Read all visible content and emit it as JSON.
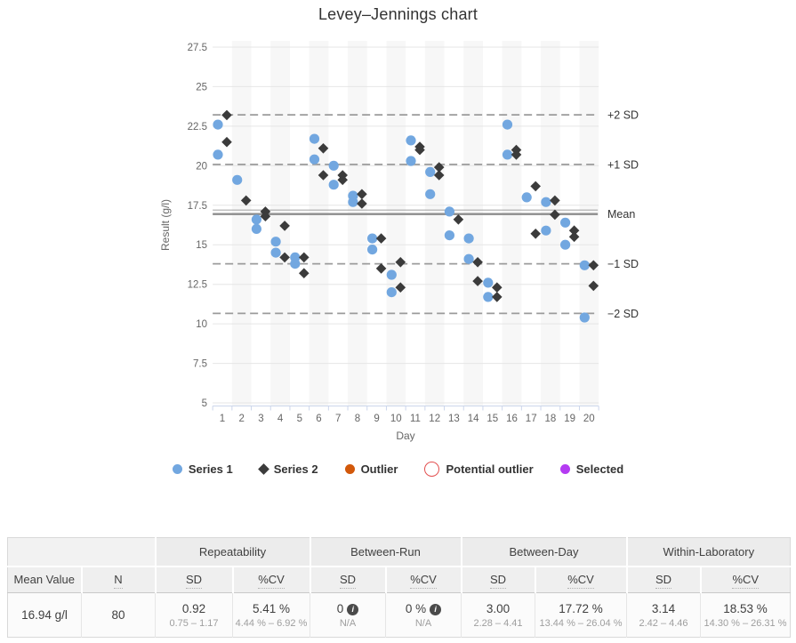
{
  "chart_data": {
    "type": "scatter",
    "title": "Levey–Jennings chart",
    "xlabel": "Day",
    "ylabel": "Result (g/l)",
    "x_ticks": [
      1,
      2,
      3,
      4,
      5,
      6,
      7,
      8,
      9,
      10,
      11,
      12,
      13,
      14,
      15,
      16,
      17,
      18,
      19,
      20
    ],
    "y_ticks": [
      5,
      7.5,
      10,
      12.5,
      15,
      17.5,
      20,
      22.5,
      25,
      27.5
    ],
    "ylim": [
      5,
      27.5
    ],
    "grid": true,
    "banded_days": "even",
    "mean": 16.94,
    "sd": 3.14,
    "ref_lines": [
      {
        "label": "+2 SD",
        "value": 23.22,
        "style": "dashed"
      },
      {
        "label": "+1 SD",
        "value": 20.08,
        "style": "dashed"
      },
      {
        "label": "Mean",
        "value": 16.94,
        "style": "solid"
      },
      {
        "label": "−1 SD",
        "value": 13.8,
        "style": "dashed"
      },
      {
        "label": "−2 SD",
        "value": 10.66,
        "style": "dashed"
      }
    ],
    "series": [
      {
        "name": "Series 1",
        "marker": "circle",
        "color": "#72a7e0",
        "points": [
          [
            1,
            22.6
          ],
          [
            1,
            20.7
          ],
          [
            2,
            19.1
          ],
          [
            3,
            16.6
          ],
          [
            3,
            16.0
          ],
          [
            4,
            15.2
          ],
          [
            4,
            14.5
          ],
          [
            5,
            14.2
          ],
          [
            5,
            13.8
          ],
          [
            6,
            21.7
          ],
          [
            6,
            20.4
          ],
          [
            7,
            20.0
          ],
          [
            7,
            18.8
          ],
          [
            8,
            18.1
          ],
          [
            8,
            17.7
          ],
          [
            9,
            15.4
          ],
          [
            9,
            14.7
          ],
          [
            10,
            13.1
          ],
          [
            10,
            12.0
          ],
          [
            11,
            21.6
          ],
          [
            11,
            20.3
          ],
          [
            12,
            19.6
          ],
          [
            12,
            18.2
          ],
          [
            13,
            17.1
          ],
          [
            13,
            15.6
          ],
          [
            14,
            15.4
          ],
          [
            14,
            14.1
          ],
          [
            15,
            12.6
          ],
          [
            15,
            11.7
          ],
          [
            16,
            22.6
          ],
          [
            16,
            20.7
          ],
          [
            17,
            18.0
          ],
          [
            18,
            17.7
          ],
          [
            18,
            15.9
          ],
          [
            19,
            16.4
          ],
          [
            19,
            15.0
          ],
          [
            20,
            13.7
          ],
          [
            20,
            10.4
          ]
        ]
      },
      {
        "name": "Series 2",
        "marker": "diamond",
        "color": "#3b3b3b",
        "points": [
          [
            1,
            23.2
          ],
          [
            1,
            21.5
          ],
          [
            2,
            17.8
          ],
          [
            3,
            17.1
          ],
          [
            3,
            16.8
          ],
          [
            4,
            16.2
          ],
          [
            4,
            14.2
          ],
          [
            5,
            14.2
          ],
          [
            5,
            13.2
          ],
          [
            6,
            21.1
          ],
          [
            6,
            19.4
          ],
          [
            7,
            19.4
          ],
          [
            7,
            19.1
          ],
          [
            8,
            18.2
          ],
          [
            8,
            17.6
          ],
          [
            9,
            15.4
          ],
          [
            9,
            13.5
          ],
          [
            10,
            13.9
          ],
          [
            10,
            12.3
          ],
          [
            11,
            21.2
          ],
          [
            11,
            21.0
          ],
          [
            12,
            19.9
          ],
          [
            12,
            19.4
          ],
          [
            13,
            16.6
          ],
          [
            14,
            13.9
          ],
          [
            14,
            12.7
          ],
          [
            15,
            12.3
          ],
          [
            15,
            11.7
          ],
          [
            16,
            21.0
          ],
          [
            16,
            20.7
          ],
          [
            17,
            18.7
          ],
          [
            17,
            15.7
          ],
          [
            18,
            17.8
          ],
          [
            18,
            16.9
          ],
          [
            19,
            15.9
          ],
          [
            19,
            15.5
          ],
          [
            20,
            13.7
          ],
          [
            20,
            12.4
          ]
        ]
      }
    ],
    "legend": [
      {
        "label": "Series 1",
        "marker": "circle",
        "color": "#72a7e0"
      },
      {
        "label": "Series 2",
        "marker": "diamond",
        "color": "#3b3b3b"
      },
      {
        "label": "Outlier",
        "marker": "circle",
        "color": "#d2580a"
      },
      {
        "label": "Potential outlier",
        "marker": "ring",
        "color": "#e35050"
      },
      {
        "label": "Selected",
        "marker": "circle",
        "color": "#b43bf2"
      }
    ],
    "colors": {
      "band": "#f7f7f7",
      "grid": "#e6e6e6",
      "dash": "#9b9b9b",
      "mean": "#8d8d8d",
      "axis": "#ccd6eb",
      "tick_text": "#666666",
      "ref_label": "#333333"
    }
  },
  "table": {
    "groups": [
      "Repeatability",
      "Between-Run",
      "Between-Day",
      "Within-Laboratory"
    ],
    "headers": {
      "mean_value": "Mean Value",
      "n": "N",
      "sd": "SD",
      "cv": "%CV"
    },
    "row": {
      "mean_value": "16.94 g/l",
      "n": "80",
      "repeatability_sd": {
        "main": "0.92",
        "range": "0.75 – 1.17"
      },
      "repeatability_cv": {
        "main": "5.41 %",
        "range": "4.44 % – 6.92 %"
      },
      "between_run_sd": {
        "main": "0",
        "range": "N/A",
        "info": true
      },
      "between_run_cv": {
        "main": "0 %",
        "range": "N/A",
        "info": true
      },
      "between_day_sd": {
        "main": "3.00",
        "range": "2.28 – 4.41"
      },
      "between_day_cv": {
        "main": "17.72 %",
        "range": "13.44 % – 26.04 %"
      },
      "within_lab_sd": {
        "main": "3.14",
        "range": "2.42 – 4.46"
      },
      "within_lab_cv": {
        "main": "18.53 %",
        "range": "14.30 % – 26.31 %"
      }
    }
  }
}
